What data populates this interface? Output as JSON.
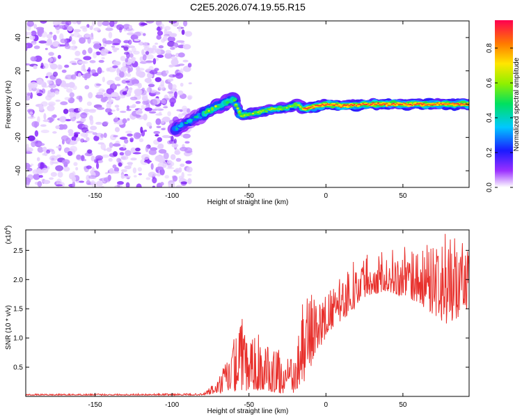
{
  "figure_title": "C2E5.2026.074.19.55.R15",
  "chart_data": [
    {
      "type": "heatmap",
      "xlabel": "Height of straight line (km)",
      "ylabel": "Frequency (Hz)",
      "xlim": [
        -195,
        93
      ],
      "ylim": [
        -50,
        50
      ],
      "xticks": [
        -150,
        -100,
        -50,
        0,
        50
      ],
      "yticks": [
        -40,
        -20,
        0,
        20,
        40
      ],
      "noise_region_x": [
        -195,
        -88
      ],
      "ridge": [
        {
          "x": -98,
          "y": -15
        },
        {
          "x": -90,
          "y": -11
        },
        {
          "x": -80,
          "y": -6
        },
        {
          "x": -70,
          "y": -1
        },
        {
          "x": -60,
          "y": 3
        },
        {
          "x": -55,
          "y": -7
        },
        {
          "x": -45,
          "y": -5
        },
        {
          "x": -35,
          "y": -3
        },
        {
          "x": -25,
          "y": -2
        },
        {
          "x": -18,
          "y": 0
        },
        {
          "x": -15,
          "y": -3
        },
        {
          "x": -5,
          "y": -1
        },
        {
          "x": 0,
          "y": 0
        },
        {
          "x": 10,
          "y": -1
        },
        {
          "x": 30,
          "y": 0
        },
        {
          "x": 60,
          "y": 0
        },
        {
          "x": 93,
          "y": 0
        }
      ],
      "colorbar": {
        "label": "Normalized spectral amplitude",
        "ticks": [
          "0.0",
          "0.2",
          "0.4",
          "0.6",
          "0.8"
        ],
        "tick_values": [
          0.0,
          0.2,
          0.4,
          0.6,
          0.8
        ],
        "range": [
          0,
          0.96
        ]
      },
      "grid": false
    },
    {
      "type": "line",
      "xlabel": "Height of straight line (km)",
      "ylabel": "SNR (10 * v/v)",
      "scale_note": "(x10",
      "scale_exp": "4",
      "scale_close": ")",
      "xlim": [
        -195,
        93
      ],
      "ylim": [
        0,
        2.85
      ],
      "xticks": [
        -150,
        -100,
        -50,
        0,
        50
      ],
      "yticks": [
        "0.5",
        "1.0",
        "1.5",
        "2.0",
        "2.5"
      ],
      "ytick_values": [
        0.5,
        1.0,
        1.5,
        2.0,
        2.5
      ],
      "series": [
        {
          "color": "#e8302c",
          "envelope": [
            {
              "x": -195,
              "low": 0.02,
              "high": 0.04
            },
            {
              "x": -80,
              "low": 0.02,
              "high": 0.05
            },
            {
              "x": -70,
              "low": 0.05,
              "high": 0.3
            },
            {
              "x": -55,
              "low": 0.1,
              "high": 1.3
            },
            {
              "x": -50,
              "low": 0.1,
              "high": 1.0
            },
            {
              "x": -40,
              "low": 0.1,
              "high": 0.9
            },
            {
              "x": -30,
              "low": 0.05,
              "high": 0.8
            },
            {
              "x": -20,
              "low": 0.05,
              "high": 0.6
            },
            {
              "x": -13,
              "low": 0.3,
              "high": 1.8
            },
            {
              "x": -5,
              "low": 0.8,
              "high": 1.6
            },
            {
              "x": 5,
              "low": 1.2,
              "high": 1.9
            },
            {
              "x": 15,
              "low": 1.4,
              "high": 2.2
            },
            {
              "x": 25,
              "low": 1.7,
              "high": 2.4
            },
            {
              "x": 40,
              "low": 1.8,
              "high": 2.4
            },
            {
              "x": 60,
              "low": 1.6,
              "high": 2.5
            },
            {
              "x": 80,
              "low": 1.2,
              "high": 2.6
            },
            {
              "x": 93,
              "low": 1.5,
              "high": 2.5
            }
          ]
        }
      ],
      "grid": false
    }
  ]
}
